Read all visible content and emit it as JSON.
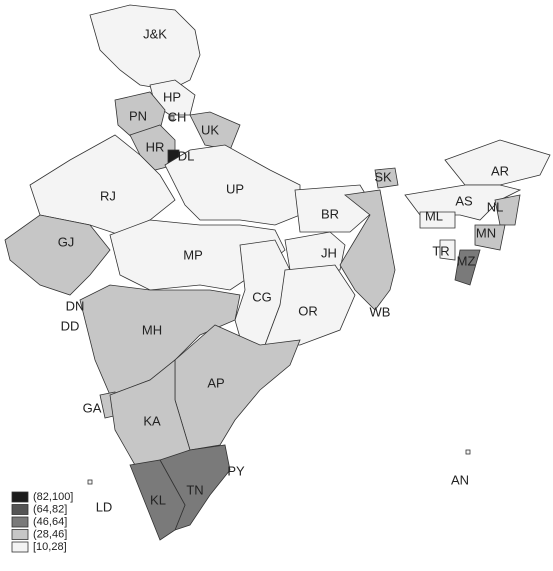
{
  "regions": [
    {
      "label": "J&K",
      "color": "#f4f4f4"
    },
    {
      "label": "HP",
      "color": "#f4f4f4"
    },
    {
      "label": "PN",
      "color": "#c6c6c6"
    },
    {
      "label": "CH",
      "color": "#c6c6c6"
    },
    {
      "label": "UK",
      "color": "#c6c6c6"
    },
    {
      "label": "HR",
      "color": "#c6c6c6"
    },
    {
      "label": "DL",
      "color": "#1c1c1c"
    },
    {
      "label": "RJ",
      "color": "#f4f4f4"
    },
    {
      "label": "UP",
      "color": "#f4f4f4"
    },
    {
      "label": "BR",
      "color": "#f4f4f4"
    },
    {
      "label": "SK",
      "color": "#c6c6c6"
    },
    {
      "label": "AR",
      "color": "#f4f4f4"
    },
    {
      "label": "AS",
      "color": "#f4f4f4"
    },
    {
      "label": "NL",
      "color": "#c6c6c6"
    },
    {
      "label": "ML",
      "color": "#f4f4f4"
    },
    {
      "label": "MN",
      "color": "#c6c6c6"
    },
    {
      "label": "TR",
      "color": "#f4f4f4"
    },
    {
      "label": "MZ",
      "color": "#7a7a7a"
    },
    {
      "label": "GJ",
      "color": "#c6c6c6"
    },
    {
      "label": "MP",
      "color": "#f4f4f4"
    },
    {
      "label": "JH",
      "color": "#f4f4f4"
    },
    {
      "label": "WB",
      "color": "#c6c6c6"
    },
    {
      "label": "CG",
      "color": "#f4f4f4"
    },
    {
      "label": "OR",
      "color": "#f4f4f4"
    },
    {
      "label": "DN",
      "color": "#c6c6c6"
    },
    {
      "label": "DD",
      "color": "#c6c6c6"
    },
    {
      "label": "MH",
      "color": "#c6c6c6"
    },
    {
      "label": "AP",
      "color": "#c6c6c6"
    },
    {
      "label": "GA",
      "color": "#c6c6c6"
    },
    {
      "label": "KA",
      "color": "#c6c6c6"
    },
    {
      "label": "PY",
      "color": "#1c1c1c"
    },
    {
      "label": "TN",
      "color": "#7a7a7a"
    },
    {
      "label": "KL",
      "color": "#7a7a7a"
    },
    {
      "label": "LD",
      "color": "#f4f4f4"
    },
    {
      "label": "AN",
      "color": "#f4f4f4"
    }
  ],
  "legend": [
    {
      "label": "(82,100]",
      "color": "#1c1c1c"
    },
    {
      "label": "(64,82]",
      "color": "#555555"
    },
    {
      "label": "(46,64]",
      "color": "#7a7a7a"
    },
    {
      "label": "(28,46]",
      "color": "#c6c6c6"
    },
    {
      "label": "[10,28]",
      "color": "#f4f4f4"
    }
  ]
}
